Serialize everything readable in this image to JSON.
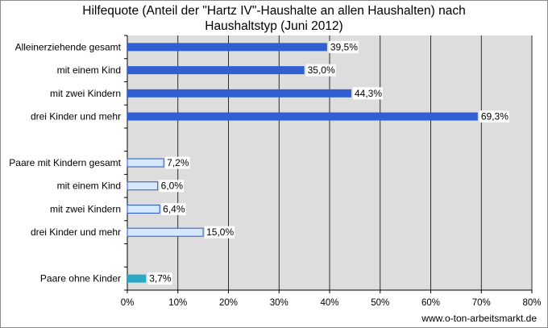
{
  "chart_data": {
    "type": "bar",
    "orientation": "horizontal",
    "title_lines": [
      "Hilfequote (Anteil der \"Hartz IV\"-Haushalte an allen Haushalten) nach",
      "Haushaltstyp (Juni 2012)"
    ],
    "categories": [
      "Alleinerziehende gesamt",
      "mit einem Kind",
      "mit zwei Kindern",
      "drei Kinder und mehr",
      "",
      "Paare mit Kindern gesamt",
      "mit einem Kind",
      "mit zwei Kindern",
      "drei Kinder und mehr",
      "",
      "Paare ohne Kinder"
    ],
    "values": [
      39.5,
      35.0,
      44.3,
      69.3,
      null,
      7.2,
      6.0,
      6.4,
      15.0,
      null,
      3.7
    ],
    "value_labels": [
      "39,5%",
      "35,0%",
      "44,3%",
      "69,3%",
      "",
      "7,2%",
      "6,0%",
      "6,4%",
      "15,0%",
      "",
      "3,7%"
    ],
    "groups": [
      "single",
      "single",
      "single",
      "single",
      "gap",
      "couple",
      "couple",
      "couple",
      "couple",
      "gap",
      "nokids"
    ],
    "xlim": [
      0,
      80
    ],
    "x_ticks": [
      0,
      10,
      20,
      30,
      40,
      50,
      60,
      70,
      80
    ],
    "x_tick_labels": [
      "0%",
      "10%",
      "20%",
      "30%",
      "40%",
      "50%",
      "60%",
      "70%",
      "80%"
    ],
    "grid": "vertical",
    "colors": {
      "single": "#2F5FD0",
      "couple": "#D6E8FB",
      "couple_border": "#2A57C6",
      "nokids": "#2AA9C7",
      "plot_bg": "#DDDDDD",
      "grid": "#000000"
    }
  },
  "source": "www.o-ton-arbeitsmarkt.de"
}
